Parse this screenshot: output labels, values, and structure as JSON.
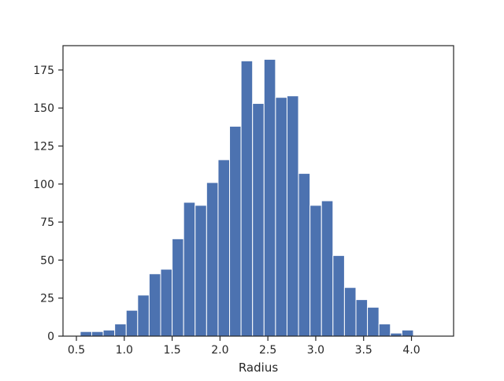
{
  "chart_data": {
    "type": "bar",
    "title": "",
    "xlabel": "Radius",
    "ylabel": "",
    "xlim": [
      0.36,
      4.44
    ],
    "ylim": [
      0,
      191
    ],
    "grid": false,
    "bin_width": 0.12,
    "bins": [
      {
        "x0": 0.54,
        "x1": 0.66,
        "count": 3
      },
      {
        "x0": 0.66,
        "x1": 0.78,
        "count": 3
      },
      {
        "x0": 0.78,
        "x1": 0.9,
        "count": 4
      },
      {
        "x0": 0.9,
        "x1": 1.02,
        "count": 8
      },
      {
        "x0": 1.02,
        "x1": 1.14,
        "count": 17
      },
      {
        "x0": 1.14,
        "x1": 1.26,
        "count": 27
      },
      {
        "x0": 1.26,
        "x1": 1.38,
        "count": 41
      },
      {
        "x0": 1.38,
        "x1": 1.5,
        "count": 44
      },
      {
        "x0": 1.5,
        "x1": 1.62,
        "count": 64
      },
      {
        "x0": 1.62,
        "x1": 1.74,
        "count": 88
      },
      {
        "x0": 1.74,
        "x1": 1.86,
        "count": 86
      },
      {
        "x0": 1.86,
        "x1": 1.98,
        "count": 101
      },
      {
        "x0": 1.98,
        "x1": 2.1,
        "count": 116
      },
      {
        "x0": 2.1,
        "x1": 2.22,
        "count": 138
      },
      {
        "x0": 2.22,
        "x1": 2.34,
        "count": 181
      },
      {
        "x0": 2.34,
        "x1": 2.46,
        "count": 153
      },
      {
        "x0": 2.46,
        "x1": 2.58,
        "count": 182
      },
      {
        "x0": 2.58,
        "x1": 2.7,
        "count": 157
      },
      {
        "x0": 2.7,
        "x1": 2.82,
        "count": 158
      },
      {
        "x0": 2.82,
        "x1": 2.94,
        "count": 107
      },
      {
        "x0": 2.94,
        "x1": 3.06,
        "count": 86
      },
      {
        "x0": 3.06,
        "x1": 3.18,
        "count": 89
      },
      {
        "x0": 3.18,
        "x1": 3.3,
        "count": 53
      },
      {
        "x0": 3.3,
        "x1": 3.42,
        "count": 32
      },
      {
        "x0": 3.42,
        "x1": 3.54,
        "count": 24
      },
      {
        "x0": 3.54,
        "x1": 3.66,
        "count": 19
      },
      {
        "x0": 3.66,
        "x1": 3.78,
        "count": 8
      },
      {
        "x0": 3.78,
        "x1": 3.9,
        "count": 2
      },
      {
        "x0": 3.9,
        "x1": 4.02,
        "count": 4
      },
      {
        "x0": 4.02,
        "x1": 4.14,
        "count": 0
      },
      {
        "x0": 4.14,
        "x1": 4.26,
        "count": 0
      }
    ],
    "x_ticks": [
      {
        "value": 0.5,
        "label": "0.5"
      },
      {
        "value": 1.0,
        "label": "1.0"
      },
      {
        "value": 1.5,
        "label": "1.5"
      },
      {
        "value": 2.0,
        "label": "2.0"
      },
      {
        "value": 2.5,
        "label": "2.5"
      },
      {
        "value": 3.0,
        "label": "3.0"
      },
      {
        "value": 3.5,
        "label": "3.5"
      },
      {
        "value": 4.0,
        "label": "4.0"
      }
    ],
    "y_ticks": [
      {
        "value": 0,
        "label": "0"
      },
      {
        "value": 25,
        "label": "25"
      },
      {
        "value": 50,
        "label": "50"
      },
      {
        "value": 75,
        "label": "75"
      },
      {
        "value": 100,
        "label": "100"
      },
      {
        "value": 125,
        "label": "125"
      },
      {
        "value": 150,
        "label": "150"
      },
      {
        "value": 175,
        "label": "175"
      }
    ],
    "colors": {
      "bar_fill": "#4c72b0",
      "bar_edge": "#ffffff",
      "axis": "#262626"
    }
  }
}
